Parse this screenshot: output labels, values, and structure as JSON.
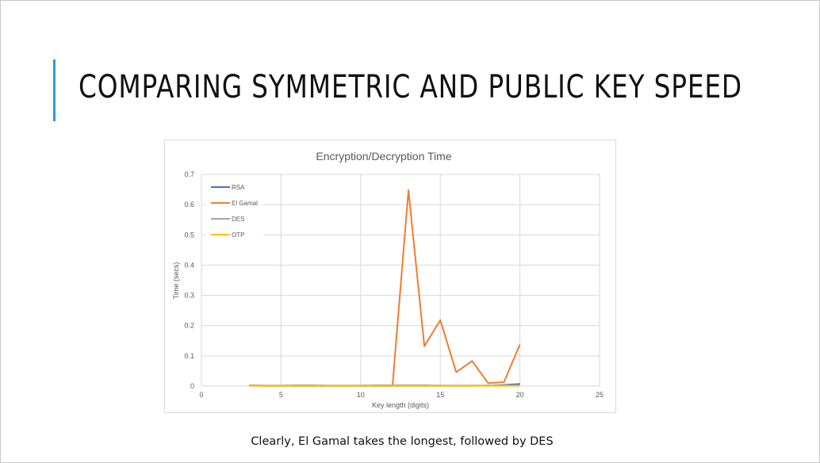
{
  "slide": {
    "title": "COMPARING SYMMETRIC AND PUBLIC KEY SPEED",
    "caption": "Clearly, El Gamal takes the longest, followed by DES",
    "accent_color": "#2e9bd4"
  },
  "chart_data": {
    "type": "line",
    "title": "Encryption/Decryption Time",
    "xlabel": "Key length (digits)",
    "ylabel": "Time (secs)",
    "xlim": [
      0,
      25
    ],
    "ylim": [
      0,
      0.7
    ],
    "xticks": [
      "0",
      "5",
      "10",
      "15",
      "20",
      "25"
    ],
    "yticks": [
      "0",
      "0.1",
      "0.2",
      "0.3",
      "0.4",
      "0.5",
      "0.6",
      "0.7"
    ],
    "grid": true,
    "legend_position": "top-left",
    "series": [
      {
        "name": "RSA",
        "color": "#4472c4",
        "x": [
          3,
          4,
          5,
          6,
          7,
          8,
          9,
          10,
          11,
          12,
          13,
          14,
          15,
          16,
          17,
          18,
          19,
          20
        ],
        "y": [
          0.002,
          0.001,
          0.001,
          0.001,
          0.001,
          0.001,
          0.001,
          0.001,
          0.001,
          0.001,
          0.001,
          0.001,
          0.001,
          0.001,
          0.001,
          0.002,
          0.004,
          0.007
        ]
      },
      {
        "name": "El Gamal",
        "color": "#ed7d31",
        "x": [
          3,
          4,
          5,
          6,
          7,
          8,
          9,
          10,
          11,
          12,
          13,
          14,
          15,
          16,
          17,
          18,
          19,
          20
        ],
        "y": [
          0.001,
          0.001,
          0.001,
          0.001,
          0.001,
          0.001,
          0.001,
          0.001,
          0.001,
          0.001,
          0.648,
          0.132,
          0.218,
          0.046,
          0.083,
          0.01,
          0.013,
          0.138
        ]
      },
      {
        "name": "DES",
        "color": "#a5a5a5",
        "x": [
          3,
          4,
          5,
          6,
          7,
          8,
          9,
          10,
          11,
          12,
          13,
          14,
          15,
          16,
          17,
          18,
          19,
          20
        ],
        "y": [
          0.003,
          0.002,
          0.002,
          0.003,
          0.003,
          0.002,
          0.002,
          0.002,
          0.003,
          0.003,
          0.003,
          0.003,
          0.002,
          0.002,
          0.002,
          0.002,
          0.002,
          0.002
        ]
      },
      {
        "name": "OTP",
        "color": "#ffc000",
        "x": [
          3,
          4,
          5,
          6,
          7,
          8,
          9,
          10,
          11,
          12,
          13,
          14,
          15,
          16,
          17,
          18,
          19,
          20
        ],
        "y": [
          0.001,
          0.001,
          0.001,
          0.001,
          0.001,
          0.001,
          0.001,
          0.001,
          0.001,
          0.001,
          0.001,
          0.001,
          0.001,
          0.001,
          0.001,
          0.001,
          0.001,
          0.001
        ]
      }
    ]
  }
}
